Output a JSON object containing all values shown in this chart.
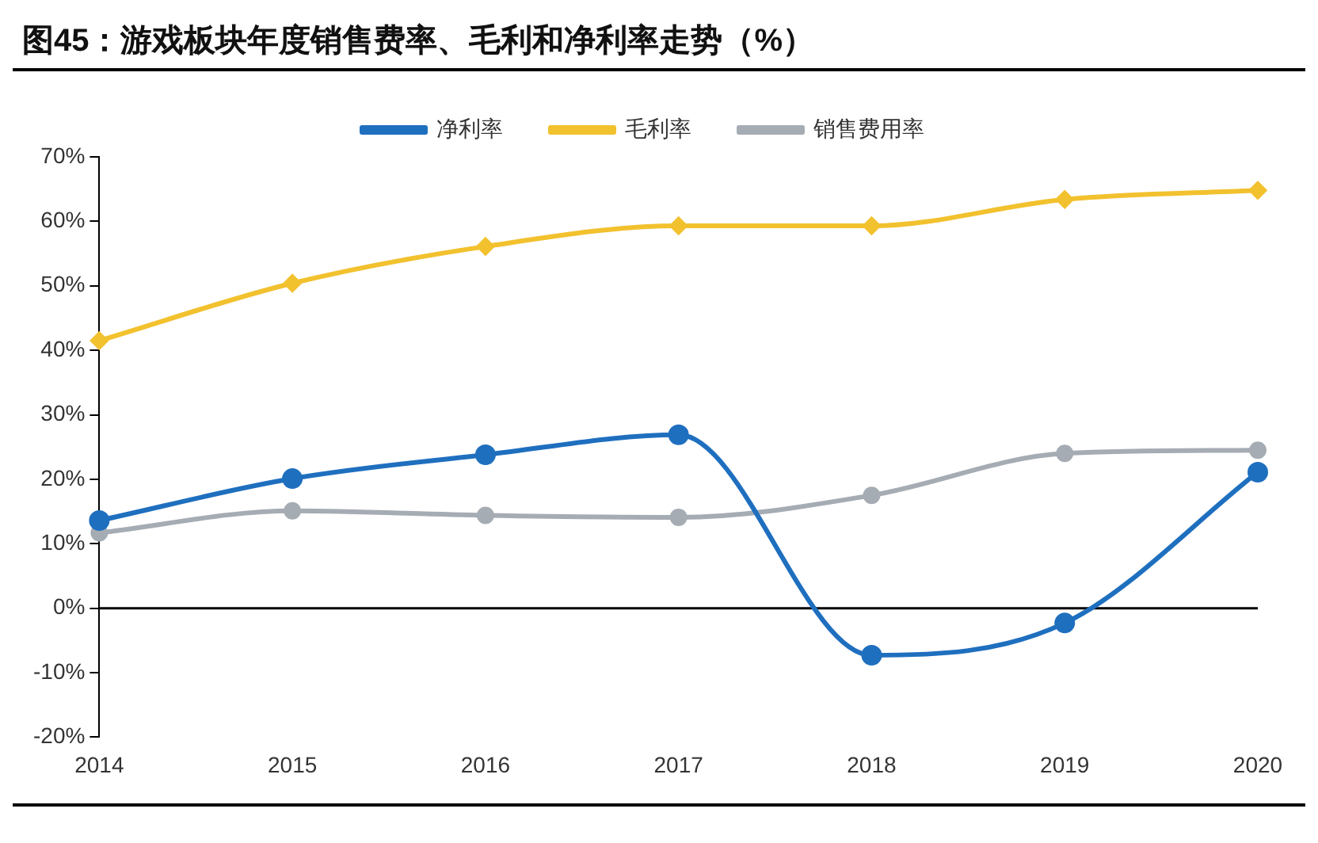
{
  "chart_data": {
    "type": "line",
    "title": "图45：游戏板块年度销售费率、毛利和净利率走势（%）",
    "categories": [
      "2014",
      "2015",
      "2016",
      "2017",
      "2018",
      "2019",
      "2020"
    ],
    "series": [
      {
        "name": "净利率",
        "color": "#1f6fbf",
        "marker": "circle",
        "values": [
          13.6,
          20.1,
          23.8,
          26.9,
          -7.3,
          -2.3,
          21.1
        ]
      },
      {
        "name": "毛利率",
        "color": "#f2c12e",
        "marker": "diamond",
        "values": [
          41.5,
          50.4,
          56.1,
          59.3,
          59.3,
          63.4,
          64.8
        ]
      },
      {
        "name": "销售费用率",
        "color": "#a6acb3",
        "marker": "circle",
        "values": [
          11.7,
          15.1,
          14.4,
          14.1,
          17.5,
          24.0,
          24.5
        ]
      }
    ],
    "ylim": [
      -20,
      70
    ],
    "yticks": [
      {
        "value": -20,
        "label": "-20%"
      },
      {
        "value": -10,
        "label": "-10%"
      },
      {
        "value": 0,
        "label": "0%"
      },
      {
        "value": 10,
        "label": "10%"
      },
      {
        "value": 20,
        "label": "20%"
      },
      {
        "value": 30,
        "label": "30%"
      },
      {
        "value": 40,
        "label": "40%"
      },
      {
        "value": 50,
        "label": "50%"
      },
      {
        "value": 60,
        "label": "60%"
      },
      {
        "value": 70,
        "label": "70%"
      }
    ],
    "ref_lines": [
      {
        "axis": "y",
        "value": 0,
        "color": "#000000"
      }
    ],
    "legend": "top",
    "grid": false
  }
}
